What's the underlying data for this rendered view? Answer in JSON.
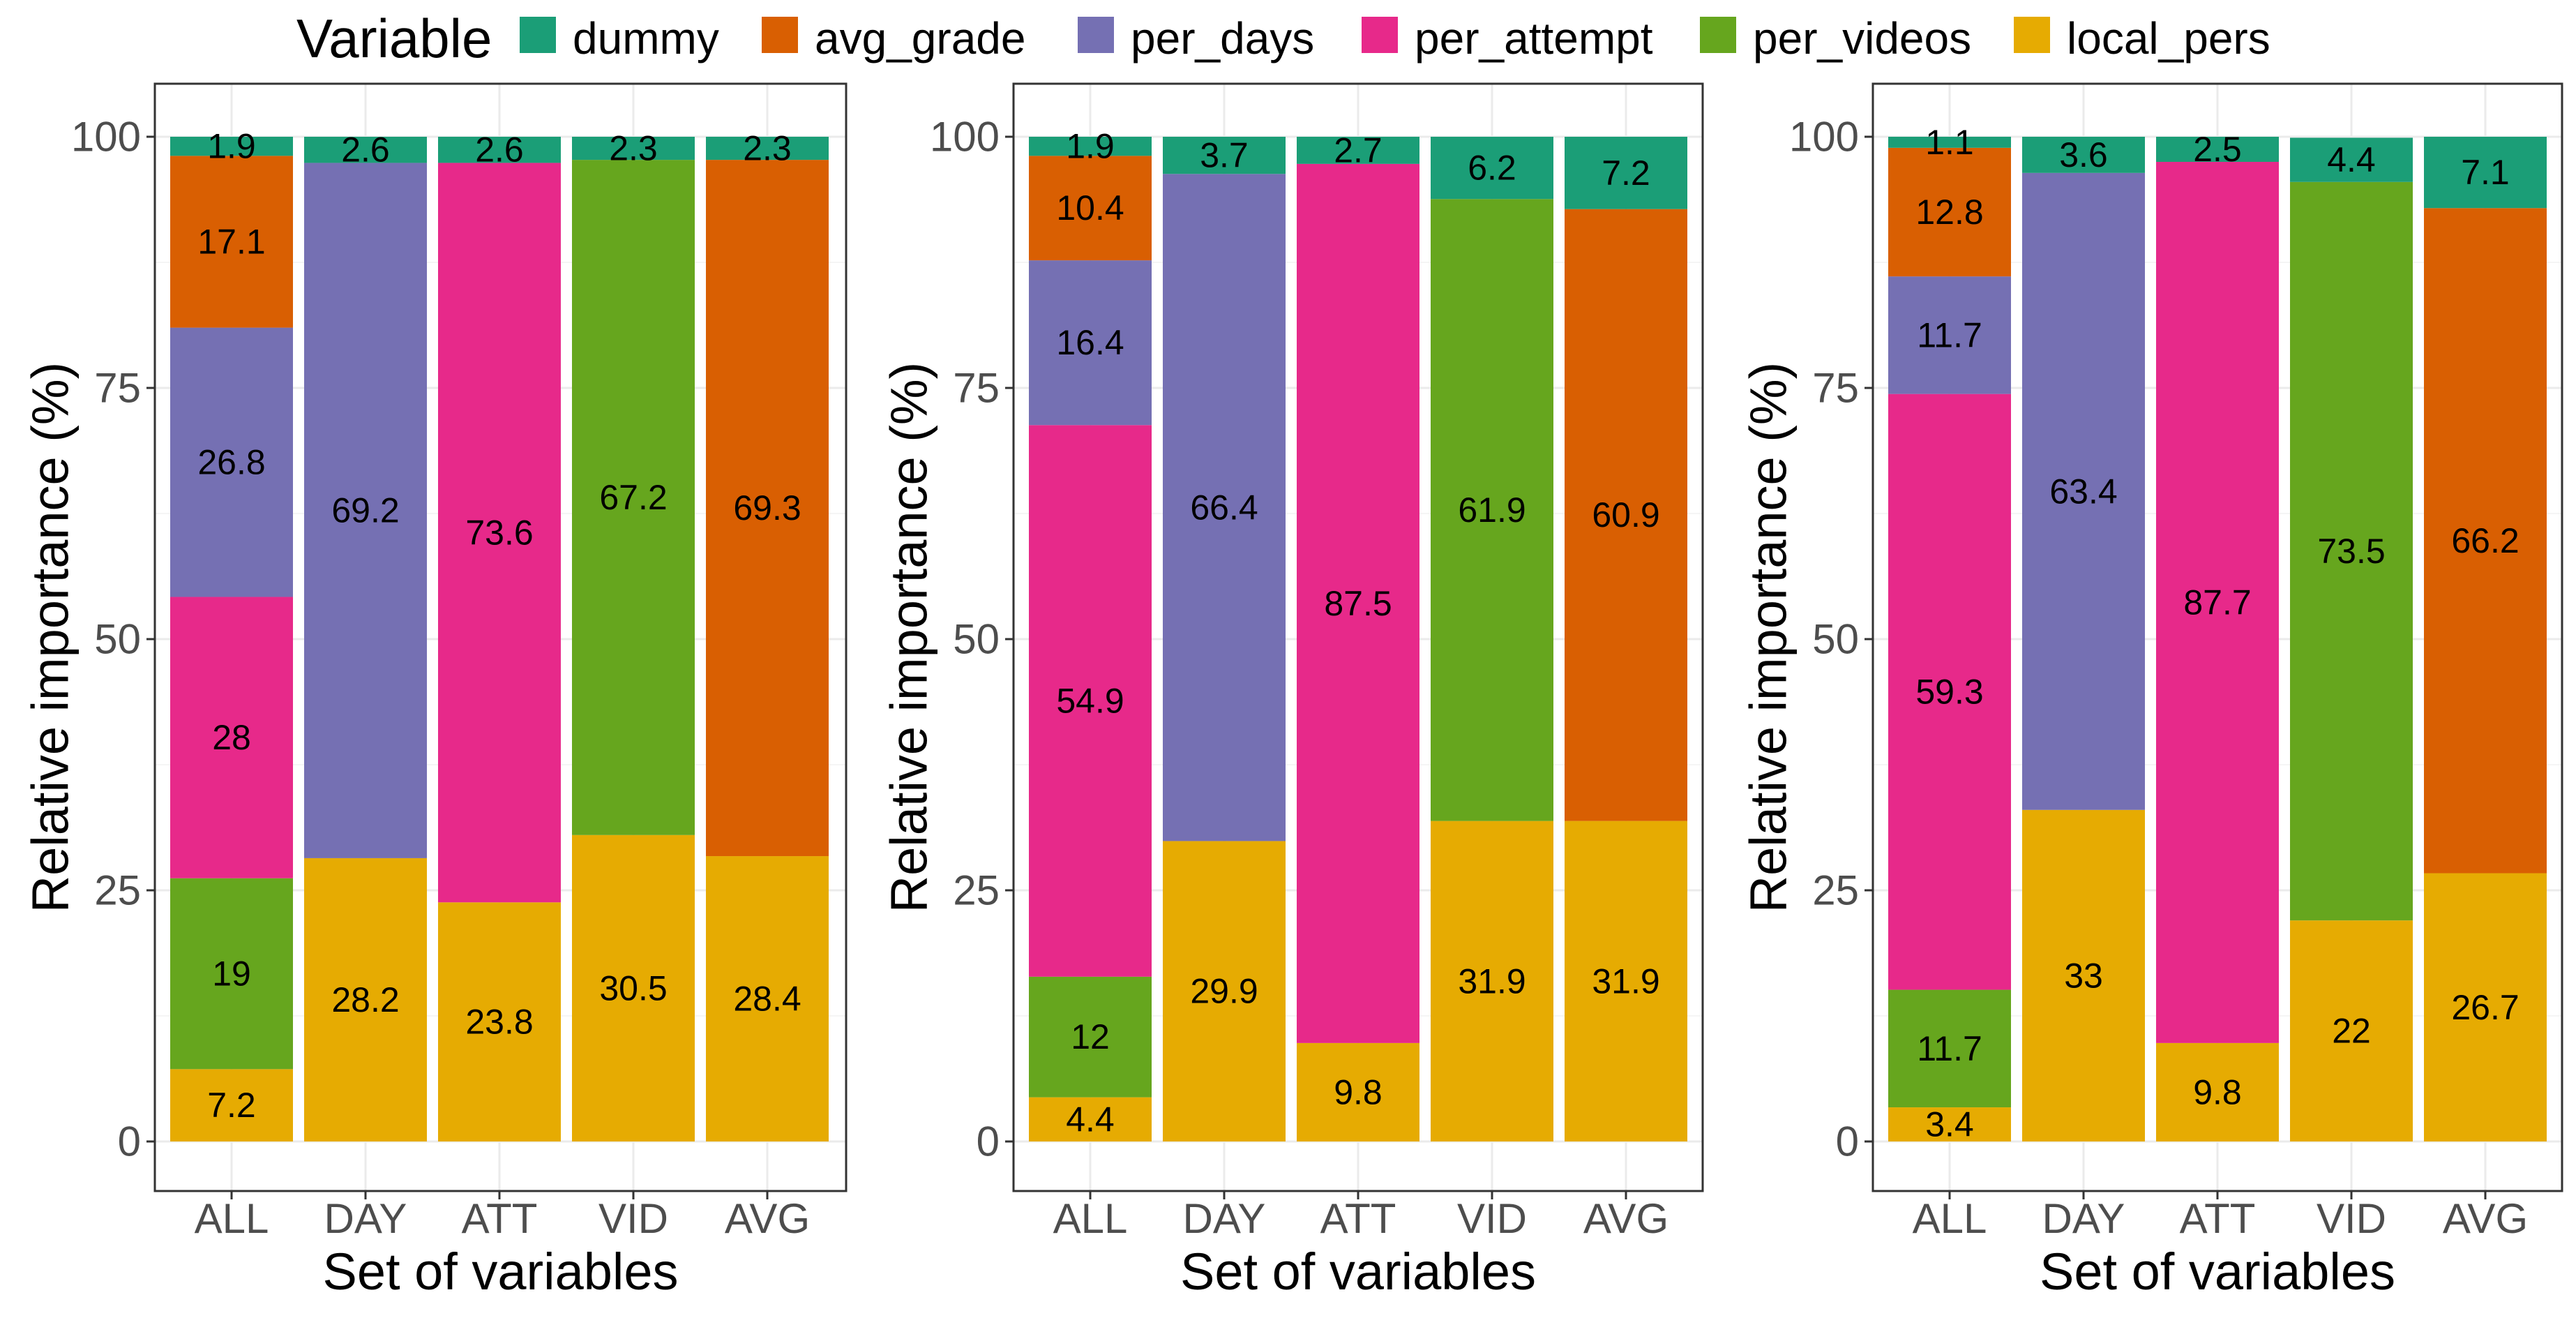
{
  "legend": {
    "title": "Variable",
    "items": [
      {
        "key": "dummy",
        "label": "dummy",
        "color": "#1B9E77"
      },
      {
        "key": "avg_grade",
        "label": "avg_grade",
        "color": "#D95F02"
      },
      {
        "key": "per_days",
        "label": "per_days",
        "color": "#7570B3"
      },
      {
        "key": "per_attempt",
        "label": "per_attempt",
        "color": "#E7298A"
      },
      {
        "key": "per_videos",
        "label": "per_videos",
        "color": "#66A61E"
      },
      {
        "key": "local_pers",
        "label": "local_pers",
        "color": "#E6AB02"
      }
    ]
  },
  "chart_data": [
    {
      "type": "bar",
      "stacked": true,
      "xlabel": "Set of variables",
      "ylabel": "Relative importance (%)",
      "ylim": [
        0,
        100
      ],
      "yticks": [
        "0",
        "25",
        "50",
        "75",
        "100"
      ],
      "categories": [
        "ALL",
        "DAY",
        "ATT",
        "VID",
        "AVG"
      ],
      "series": [
        {
          "name": "local_pers",
          "values": [
            7.2,
            28.2,
            23.8,
            30.5,
            28.4
          ],
          "labels": [
            "7.2",
            "28.2",
            "23.8",
            "30.5",
            "28.4"
          ]
        },
        {
          "name": "per_videos",
          "values": [
            19,
            0,
            0,
            67.2,
            0
          ],
          "labels": [
            "19",
            "",
            "",
            "67.2",
            ""
          ]
        },
        {
          "name": "per_attempt",
          "values": [
            28,
            0,
            73.6,
            0,
            0
          ],
          "labels": [
            "28",
            "",
            "73.6",
            "",
            ""
          ]
        },
        {
          "name": "per_days",
          "values": [
            26.8,
            69.2,
            0,
            0,
            0
          ],
          "labels": [
            "26.8",
            "69.2",
            "",
            "",
            ""
          ]
        },
        {
          "name": "avg_grade",
          "values": [
            17.1,
            0,
            0,
            0,
            69.3
          ],
          "labels": [
            "17.1",
            "",
            "",
            "",
            "69.3"
          ]
        },
        {
          "name": "dummy",
          "values": [
            1.9,
            2.6,
            2.6,
            2.3,
            2.3
          ],
          "labels": [
            "1.9",
            "2.6",
            "2.6",
            "2.3",
            "2.3"
          ]
        }
      ]
    },
    {
      "type": "bar",
      "stacked": true,
      "xlabel": "Set of variables",
      "ylabel": "Relative importance (%)",
      "ylim": [
        0,
        100
      ],
      "yticks": [
        "0",
        "25",
        "50",
        "75",
        "100"
      ],
      "categories": [
        "ALL",
        "DAY",
        "ATT",
        "VID",
        "AVG"
      ],
      "series": [
        {
          "name": "local_pers",
          "values": [
            4.4,
            29.9,
            9.8,
            31.9,
            31.9
          ],
          "labels": [
            "4.4",
            "29.9",
            "9.8",
            "31.9",
            "31.9"
          ]
        },
        {
          "name": "per_videos",
          "values": [
            12,
            0,
            0,
            61.9,
            0
          ],
          "labels": [
            "12",
            "",
            "",
            "61.9",
            ""
          ]
        },
        {
          "name": "per_attempt",
          "values": [
            54.9,
            0,
            87.5,
            0,
            0
          ],
          "labels": [
            "54.9",
            "",
            "87.5",
            "",
            ""
          ]
        },
        {
          "name": "per_days",
          "values": [
            16.4,
            66.4,
            0,
            0,
            0
          ],
          "labels": [
            "16.4",
            "66.4",
            "",
            "",
            ""
          ]
        },
        {
          "name": "avg_grade",
          "values": [
            10.4,
            0,
            0,
            0,
            60.9
          ],
          "labels": [
            "10.4",
            "",
            "",
            "",
            "60.9"
          ]
        },
        {
          "name": "dummy",
          "values": [
            1.9,
            3.7,
            2.7,
            6.2,
            7.2
          ],
          "labels": [
            "1.9",
            "3.7",
            "2.7",
            "6.2",
            "7.2"
          ]
        }
      ]
    },
    {
      "type": "bar",
      "stacked": true,
      "xlabel": "Set of variables",
      "ylabel": "Relative importance (%)",
      "ylim": [
        0,
        100
      ],
      "yticks": [
        "0",
        "25",
        "50",
        "75",
        "100"
      ],
      "categories": [
        "ALL",
        "DAY",
        "ATT",
        "VID",
        "AVG"
      ],
      "series": [
        {
          "name": "local_pers",
          "values": [
            3.4,
            33,
            9.8,
            22,
            26.7
          ],
          "labels": [
            "3.4",
            "33",
            "9.8",
            "22",
            "26.7"
          ]
        },
        {
          "name": "per_videos",
          "values": [
            11.7,
            0,
            0,
            73.5,
            0
          ],
          "labels": [
            "11.7",
            "",
            "",
            "73.5",
            ""
          ]
        },
        {
          "name": "per_attempt",
          "values": [
            59.3,
            0,
            87.7,
            0,
            0
          ],
          "labels": [
            "59.3",
            "",
            "87.7",
            "",
            ""
          ]
        },
        {
          "name": "per_days",
          "values": [
            11.7,
            63.4,
            0,
            0,
            0
          ],
          "labels": [
            "11.7",
            "63.4",
            "",
            "",
            ""
          ]
        },
        {
          "name": "avg_grade",
          "values": [
            12.8,
            0,
            0,
            0,
            66.2
          ],
          "labels": [
            "12.8",
            "",
            "",
            "",
            "66.2"
          ]
        },
        {
          "name": "dummy",
          "values": [
            1.1,
            3.6,
            2.5,
            4.4,
            7.1
          ],
          "labels": [
            "1.1",
            "3.6",
            "2.5",
            "4.4",
            "7.1"
          ]
        }
      ]
    }
  ]
}
